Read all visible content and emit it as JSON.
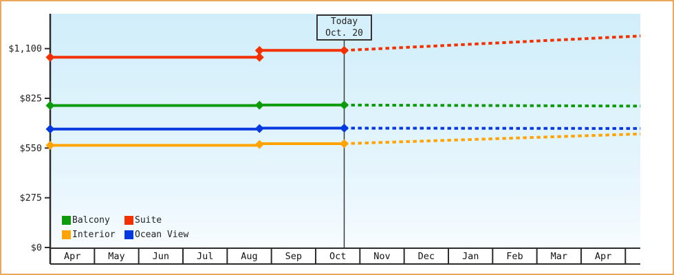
{
  "today_box": {
    "line1": "Today",
    "line2": "Oct. 20"
  },
  "legend": {
    "items": [
      {
        "label": "Balcony",
        "color": "#0b9b0b"
      },
      {
        "label": "Suite",
        "color": "#f23000"
      },
      {
        "label": "Interior",
        "color": "#ffa404"
      },
      {
        "label": "Ocean View",
        "color": "#0439e0"
      }
    ]
  },
  "chart_data": {
    "type": "line",
    "title": "",
    "x_axis": {
      "categories": [
        "Apr",
        "May",
        "Jun",
        "Jul",
        "Aug",
        "Sep",
        "Oct",
        "Nov",
        "Dec",
        "Jan",
        "Feb",
        "Mar",
        "Apr"
      ],
      "x_encoding": "x = months since April 1 (0=Apr ... 12=next Apr, 13.34 = plot right edge)"
    },
    "y_axis": {
      "ticks": [
        0,
        275,
        550,
        825,
        1100
      ],
      "tick_labels": [
        "$0",
        "$275",
        "$550",
        "$825",
        "$1,100"
      ],
      "range": [
        0,
        1295
      ],
      "unit": "USD"
    },
    "today_marker": {
      "label": "Today",
      "date": "Oct. 20",
      "x": 6.645
    },
    "grid": "off",
    "legend_position": "inside-bottom-left",
    "segment_meaning": {
      "solid": "price history up to today",
      "dashed": "projected price after today"
    },
    "series": [
      {
        "name": "Balcony",
        "color": "#0b9b0b",
        "solid": [
          [
            0,
            785
          ],
          [
            4.73,
            785
          ],
          [
            4.73,
            788
          ],
          [
            6.645,
            788
          ]
        ],
        "dashed": [
          [
            6.645,
            788
          ],
          [
            13.34,
            782
          ]
        ],
        "markers": [
          [
            0,
            785
          ],
          [
            4.73,
            787
          ],
          [
            6.645,
            788
          ]
        ]
      },
      {
        "name": "Suite",
        "color": "#f23000",
        "solid": [
          [
            0,
            1052
          ],
          [
            4.73,
            1052
          ],
          [
            4.73,
            1090
          ],
          [
            6.645,
            1090
          ]
        ],
        "dashed": [
          [
            6.645,
            1090
          ],
          [
            13.34,
            1170
          ]
        ],
        "markers": [
          [
            0,
            1052
          ],
          [
            4.73,
            1052
          ],
          [
            4.73,
            1090
          ],
          [
            6.645,
            1090
          ]
        ]
      },
      {
        "name": "Interior",
        "color": "#ffa404",
        "solid": [
          [
            0,
            565
          ],
          [
            4.73,
            565
          ],
          [
            4.73,
            574
          ],
          [
            6.645,
            574
          ]
        ],
        "dashed": [
          [
            6.645,
            574
          ],
          [
            13.34,
            628
          ]
        ],
        "markers": [
          [
            0,
            565
          ],
          [
            4.73,
            570
          ],
          [
            6.645,
            574
          ]
        ]
      },
      {
        "name": "Ocean View",
        "color": "#0439e0",
        "solid": [
          [
            0,
            655
          ],
          [
            4.73,
            655
          ],
          [
            4.73,
            660
          ],
          [
            6.645,
            660
          ]
        ],
        "dashed": [
          [
            6.645,
            660
          ],
          [
            13.34,
            658
          ]
        ],
        "markers": [
          [
            0,
            655
          ],
          [
            4.73,
            658
          ],
          [
            6.645,
            660
          ]
        ]
      }
    ]
  },
  "colors": {
    "frame_border": "#eba75a",
    "plot_bg_top": "#d0eefa",
    "plot_bg_bottom": "#f7fcff",
    "axis": "#2b2b2b",
    "text": "#222222"
  }
}
